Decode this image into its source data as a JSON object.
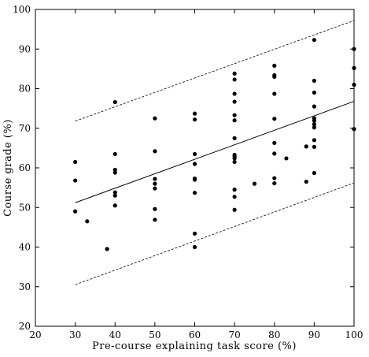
{
  "chart_data": {
    "type": "scatter",
    "title": "",
    "xlabel": "Pre-course explaining task score (%)",
    "ylabel": "Course grade (%)",
    "xlim": [
      20,
      100
    ],
    "ylim": [
      20,
      100
    ],
    "xticks": [
      "20",
      "30",
      "40",
      "50",
      "60",
      "70",
      "80",
      "90",
      "100"
    ],
    "yticks": [
      "20",
      "30",
      "40",
      "50",
      "60",
      "70",
      "80",
      "90",
      "100"
    ],
    "grid": false,
    "series": [
      {
        "kind": "points",
        "points": [
          [
            30,
            61.5
          ],
          [
            30,
            56.8
          ],
          [
            30,
            49.0
          ],
          [
            33,
            46.5
          ],
          [
            38,
            39.5
          ],
          [
            40,
            76.6
          ],
          [
            40,
            63.5
          ],
          [
            40,
            59.5
          ],
          [
            40,
            58.8
          ],
          [
            40,
            53.8
          ],
          [
            40,
            53.0
          ],
          [
            40,
            50.5
          ],
          [
            50,
            72.5
          ],
          [
            50,
            64.2
          ],
          [
            50,
            57.2
          ],
          [
            50,
            56.0
          ],
          [
            50,
            54.8
          ],
          [
            50,
            49.6
          ],
          [
            50,
            46.9
          ],
          [
            60,
            73.7
          ],
          [
            60,
            72.2
          ],
          [
            60,
            63.5
          ],
          [
            60,
            61.0
          ],
          [
            60,
            57.3
          ],
          [
            60,
            57.0
          ],
          [
            60,
            53.7
          ],
          [
            60,
            43.4
          ],
          [
            60,
            40.0
          ],
          [
            70,
            83.8
          ],
          [
            70,
            82.3
          ],
          [
            70,
            78.7
          ],
          [
            70,
            76.7
          ],
          [
            70,
            73.3
          ],
          [
            70,
            72.0
          ],
          [
            70,
            67.5
          ],
          [
            70,
            63.3
          ],
          [
            70,
            62.9
          ],
          [
            70,
            62.4
          ],
          [
            70,
            61.5
          ],
          [
            70,
            54.5
          ],
          [
            70,
            52.7
          ],
          [
            70,
            49.4
          ],
          [
            75,
            56.0
          ],
          [
            80,
            85.8
          ],
          [
            80,
            83.4
          ],
          [
            80,
            83.0
          ],
          [
            80,
            78.7
          ],
          [
            80,
            72.4
          ],
          [
            80,
            66.3
          ],
          [
            80,
            63.6
          ],
          [
            80,
            57.4
          ],
          [
            80,
            56.1
          ],
          [
            83,
            62.4
          ],
          [
            88,
            65.4
          ],
          [
            88,
            56.5
          ],
          [
            90,
            92.3
          ],
          [
            90,
            82.0
          ],
          [
            90,
            79.0
          ],
          [
            90,
            75.5
          ],
          [
            90,
            72.5
          ],
          [
            90,
            71.9
          ],
          [
            90,
            71.0
          ],
          [
            90,
            70.2
          ],
          [
            90,
            67.0
          ],
          [
            90,
            65.3
          ],
          [
            90,
            58.7
          ],
          [
            100,
            90.0
          ],
          [
            100,
            85.2
          ],
          [
            100,
            81.0
          ],
          [
            100,
            69.8
          ]
        ]
      },
      {
        "kind": "fit-line",
        "style": "solid",
        "x": [
          30,
          100
        ],
        "y": [
          51.2,
          76.8
        ]
      },
      {
        "kind": "upper-bound",
        "style": "dashed",
        "x": [
          30,
          100
        ],
        "y": [
          71.8,
          97.2
        ]
      },
      {
        "kind": "lower-bound",
        "style": "dashed",
        "x": [
          30,
          100
        ],
        "y": [
          30.5,
          56.2
        ]
      }
    ]
  }
}
